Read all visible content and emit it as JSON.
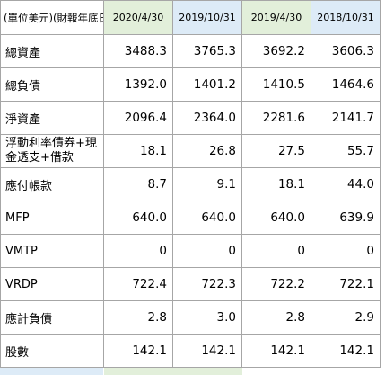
{
  "table": {
    "header": {
      "unit_label": "(單位美元)(財報年底日",
      "dates": [
        "2020/4/30",
        "2019/10/31",
        "2019/4/30",
        "2018/10/31"
      ]
    },
    "rows": [
      {
        "label": "總資產",
        "values": [
          "3488.3",
          "3765.3",
          "3692.2",
          "3606.3"
        ]
      },
      {
        "label": "總負債",
        "values": [
          "1392.0",
          "1401.2",
          "1410.5",
          "1464.6"
        ]
      },
      {
        "label": "淨資產",
        "values": [
          "2096.4",
          "2364.0",
          "2281.6",
          "2141.7"
        ]
      },
      {
        "label": "浮動利率債券+現金透支+借款",
        "values": [
          "18.1",
          "26.8",
          "27.5",
          "55.7"
        ]
      },
      {
        "label": "應付帳款",
        "values": [
          "8.7",
          "9.1",
          "18.1",
          "44.0"
        ]
      },
      {
        "label": "MFP",
        "values": [
          "640.0",
          "640.0",
          "640.0",
          "639.9"
        ]
      },
      {
        "label": "VMTP",
        "values": [
          "0",
          "0",
          "0",
          "0"
        ]
      },
      {
        "label": "VRDP",
        "values": [
          "722.4",
          "722.3",
          "722.2",
          "722.1"
        ]
      },
      {
        "label": "應計負債",
        "values": [
          "2.8",
          "3.0",
          "2.8",
          "2.9"
        ]
      },
      {
        "label": "股數",
        "values": [
          "142.1",
          "142.1",
          "142.1",
          "142.1"
        ]
      }
    ]
  },
  "colors": {
    "header_green": "#e2efda",
    "header_blue": "#ddebf7",
    "grid": "#a6a6a6"
  }
}
